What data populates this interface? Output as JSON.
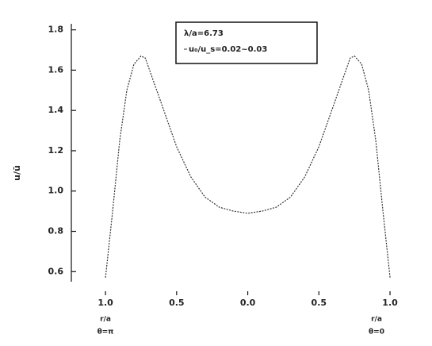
{
  "chart_data": {
    "type": "line",
    "x": [
      -1,
      -0.95,
      -0.9,
      -0.85,
      -0.8,
      -0.75,
      -0.72,
      -0.68,
      -0.6,
      -0.5,
      -0.4,
      -0.3,
      -0.2,
      -0.1,
      0,
      0.1,
      0.2,
      0.3,
      0.4,
      0.5,
      0.6,
      0.68,
      0.72,
      0.75,
      0.8,
      0.85,
      0.9,
      0.95,
      1
    ],
    "series": [
      {
        "name": "u₀/u_s=0.02~0.03",
        "color": "#333333",
        "values": [
          0.57,
          0.9,
          1.25,
          1.5,
          1.63,
          1.67,
          1.66,
          1.58,
          1.42,
          1.22,
          1.07,
          0.97,
          0.92,
          0.9,
          0.89,
          0.9,
          0.92,
          0.97,
          1.07,
          1.22,
          1.42,
          1.58,
          1.66,
          1.67,
          1.63,
          1.5,
          1.25,
          0.9,
          0.57
        ]
      }
    ],
    "legend_title": "λ/a=6.73",
    "ylabel": "u/ū",
    "xlim": [
      -1.24,
      1.1
    ],
    "ylim": [
      0.55,
      1.83
    ],
    "xticks": [
      {
        "value": -1,
        "label": "1.0"
      },
      {
        "value": -0.5,
        "label": "0.5"
      },
      {
        "value": 0,
        "label": "0.0"
      },
      {
        "value": 0.5,
        "label": "0.5"
      },
      {
        "value": 1,
        "label": "1.0"
      }
    ],
    "yticks": [
      0.6,
      0.8,
      {
        "value": 1,
        "label": "1.0"
      },
      1.2,
      1.4,
      1.6,
      1.8
    ],
    "annotations": [
      "r/a",
      "θ=π",
      "r/a",
      "θ=0"
    ]
  }
}
